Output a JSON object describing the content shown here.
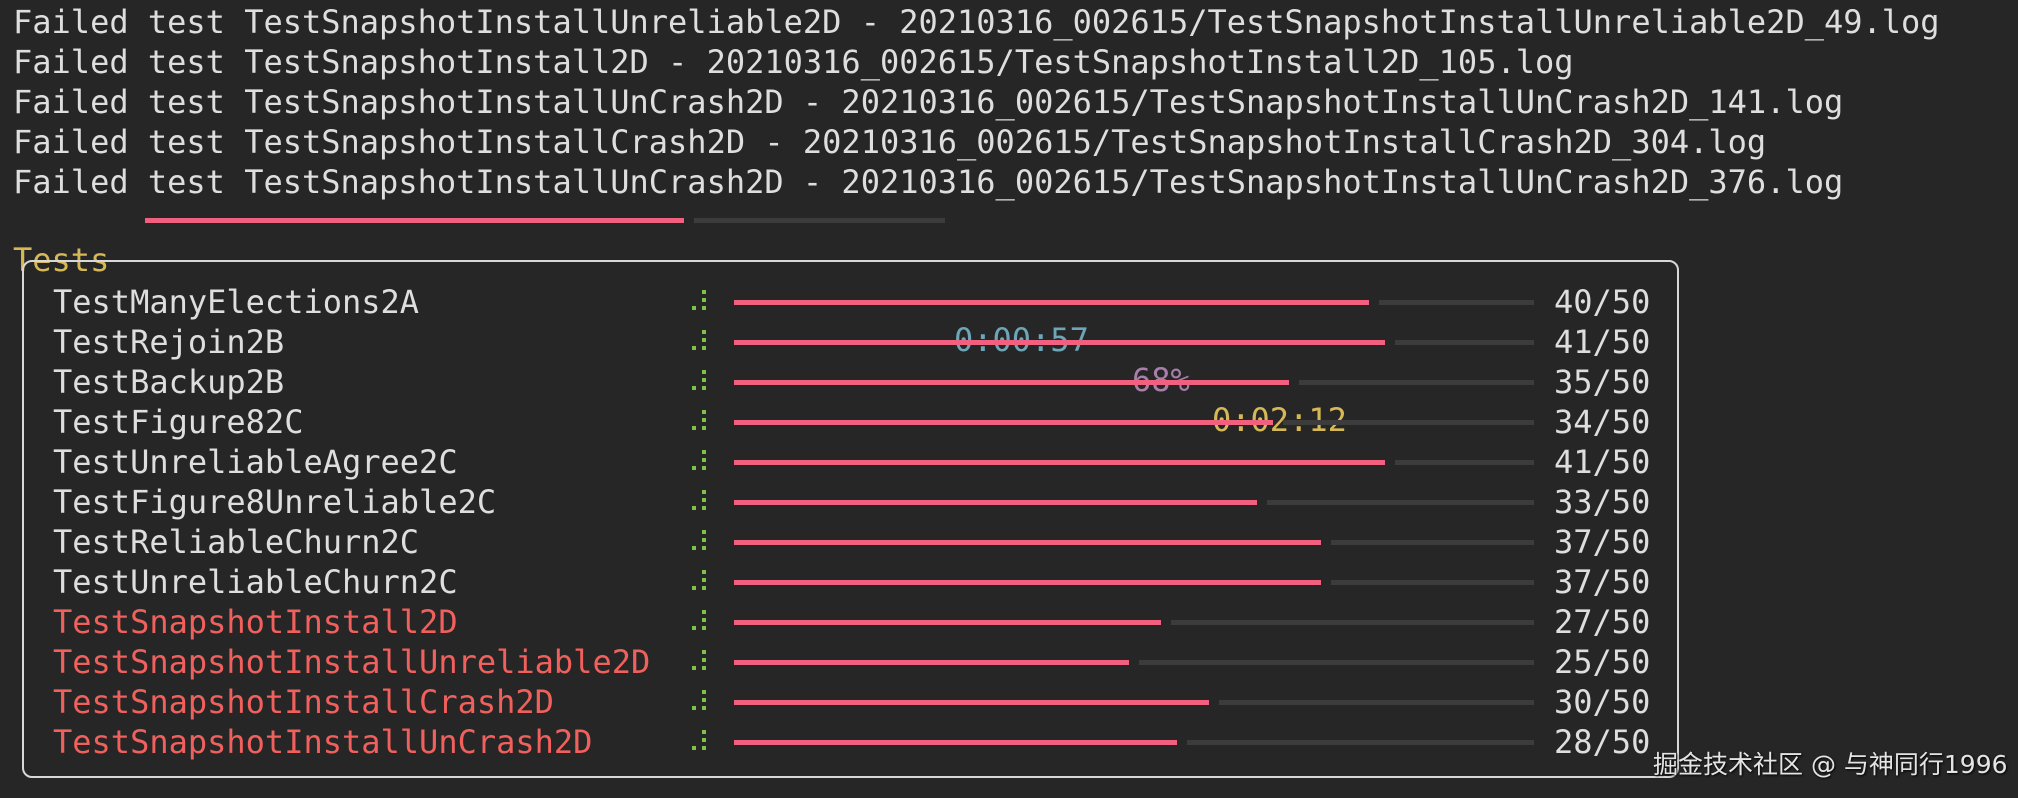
{
  "log_lines": [
    "Failed test TestSnapshotInstallUnreliable2D - 20210316_002615/TestSnapshotInstallUnreliable2D_49.log",
    "Failed test TestSnapshotInstall2D - 20210316_002615/TestSnapshotInstall2D_105.log",
    "Failed test TestSnapshotInstallUnCrash2D - 20210316_002615/TestSnapshotInstallUnCrash2D_141.log",
    "Failed test TestSnapshotInstallCrash2D - 20210316_002615/TestSnapshotInstallCrash2D_304.log",
    "Failed test TestSnapshotInstallUnCrash2D - 20210316_002615/TestSnapshotInstallUnCrash2D_376.log"
  ],
  "overall": {
    "label": "Tests",
    "elapsed": "0:00:57",
    "percent_label": "68%",
    "percent": 68,
    "remaining": "0:02:12"
  },
  "tests": [
    {
      "name": "TestManyElections2A",
      "done": 40,
      "total": 50,
      "count": "40/50",
      "failed": false
    },
    {
      "name": "TestRejoin2B",
      "done": 41,
      "total": 50,
      "count": "41/50",
      "failed": false
    },
    {
      "name": "TestBackup2B",
      "done": 35,
      "total": 50,
      "count": "35/50",
      "failed": false
    },
    {
      "name": "TestFigure82C",
      "done": 34,
      "total": 50,
      "count": "34/50",
      "failed": false
    },
    {
      "name": "TestUnreliableAgree2C",
      "done": 41,
      "total": 50,
      "count": "41/50",
      "failed": false
    },
    {
      "name": "TestFigure8Unreliable2C",
      "done": 33,
      "total": 50,
      "count": "33/50",
      "failed": false
    },
    {
      "name": "TestReliableChurn2C",
      "done": 37,
      "total": 50,
      "count": "37/50",
      "failed": false
    },
    {
      "name": "TestUnreliableChurn2C",
      "done": 37,
      "total": 50,
      "count": "37/50",
      "failed": false
    },
    {
      "name": "TestSnapshotInstall2D",
      "done": 27,
      "total": 50,
      "count": "27/50",
      "failed": true
    },
    {
      "name": "TestSnapshotInstallUnreliable2D",
      "done": 25,
      "total": 50,
      "count": "25/50",
      "failed": true
    },
    {
      "name": "TestSnapshotInstallCrash2D",
      "done": 30,
      "total": 50,
      "count": "30/50",
      "failed": true
    },
    {
      "name": "TestSnapshotInstallUnCrash2D",
      "done": 28,
      "total": 50,
      "count": "28/50",
      "failed": true
    }
  ],
  "watermark": "掘金技术社区 @ 与神同行1996",
  "colors": {
    "background": "#262626",
    "bar_fill": "#f2607f",
    "bar_track": "#3c3c3c",
    "failed_text": "#f0605c",
    "spinner": "#7cc347",
    "label_yellow": "#d6b956",
    "elapsed_cyan": "#6ca6b8",
    "percent_purple": "#a97eaa"
  }
}
